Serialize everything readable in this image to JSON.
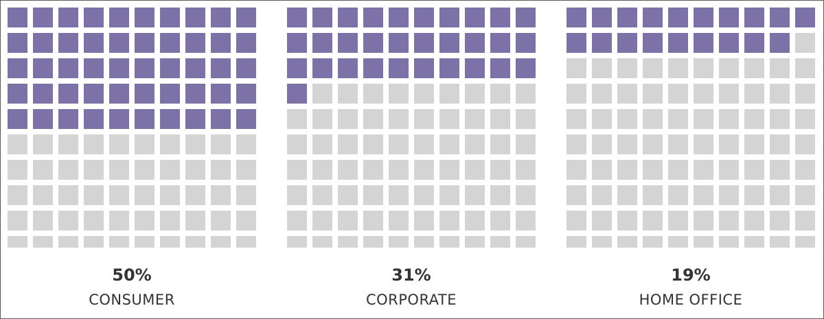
{
  "chart_data": {
    "type": "waffle",
    "grid": {
      "rows": 10,
      "cols": 10
    },
    "colors": {
      "filled": "#7d72a8",
      "empty": "#d4d4d4",
      "text": "#333333"
    },
    "panels": [
      {
        "category": "CONSUMER",
        "percent_label": "50%",
        "value": 50
      },
      {
        "category": "CORPORATE",
        "percent_label": "31%",
        "value": 31
      },
      {
        "category": "HOME OFFICE",
        "percent_label": "19%",
        "value": 19
      }
    ]
  }
}
